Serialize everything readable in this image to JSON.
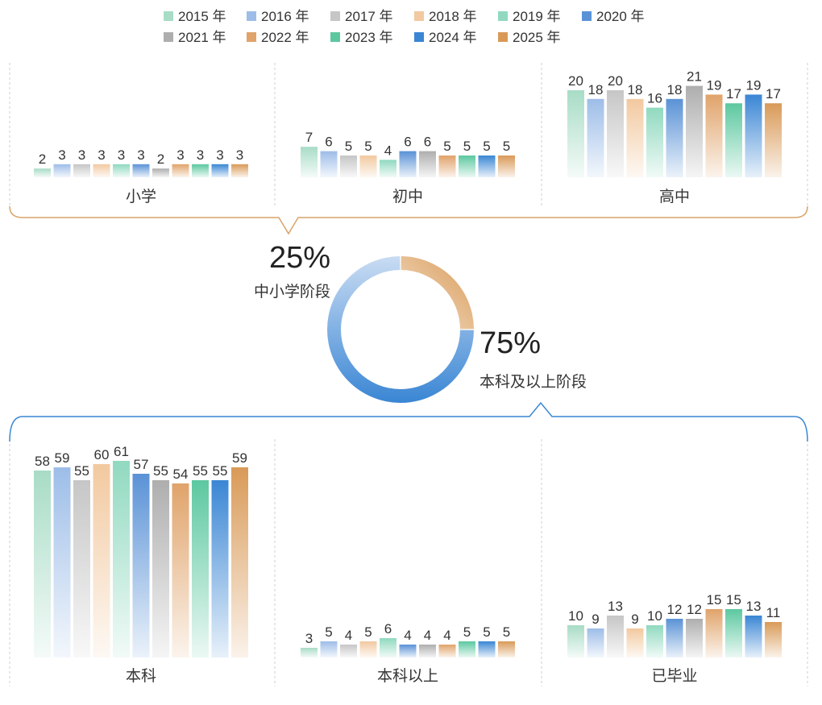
{
  "chart_data": {
    "type": "bar",
    "years": [
      "2015 年",
      "2016 年",
      "2017 年",
      "2018 年",
      "2019 年",
      "2020 年",
      "2021 年",
      "2022 年",
      "2023 年",
      "2024 年",
      "2025 年"
    ],
    "year_colors": [
      "#a8dcc6",
      "#9dbde8",
      "#c6c6c6",
      "#f2c9a0",
      "#90d9bf",
      "#5a92d6",
      "#aeaeae",
      "#e0a36a",
      "#5cc8a0",
      "#3a86d4",
      "#d99a58"
    ],
    "top_panels": [
      {
        "label": "小学",
        "values": [
          2,
          3,
          3,
          3,
          3,
          3,
          2,
          3,
          3,
          3,
          3
        ]
      },
      {
        "label": "初中",
        "values": [
          7,
          6,
          5,
          5,
          4,
          6,
          6,
          5,
          5,
          5,
          5
        ]
      },
      {
        "label": "高中",
        "values": [
          20,
          18,
          20,
          18,
          16,
          18,
          21,
          19,
          17,
          19,
          17
        ]
      }
    ],
    "bottom_panels": [
      {
        "label": "本科",
        "values": [
          58,
          59,
          55,
          60,
          61,
          57,
          55,
          54,
          55,
          55,
          59
        ]
      },
      {
        "label": "本科以上",
        "values": [
          3,
          5,
          4,
          5,
          6,
          4,
          4,
          4,
          5,
          5,
          5
        ]
      },
      {
        "label": "已毕业",
        "values": [
          10,
          9,
          13,
          9,
          10,
          12,
          12,
          15,
          15,
          13,
          11
        ]
      }
    ],
    "donut": [
      {
        "label": "中小学阶段",
        "pct_label": "25%",
        "value": 25,
        "color_from": "#f4e3cf",
        "color_to": "#d99a58"
      },
      {
        "label": "本科及以上阶段",
        "pct_label": "75%",
        "value": 75,
        "color_from": "#c9dcf3",
        "color_to": "#3a86d4"
      }
    ]
  }
}
